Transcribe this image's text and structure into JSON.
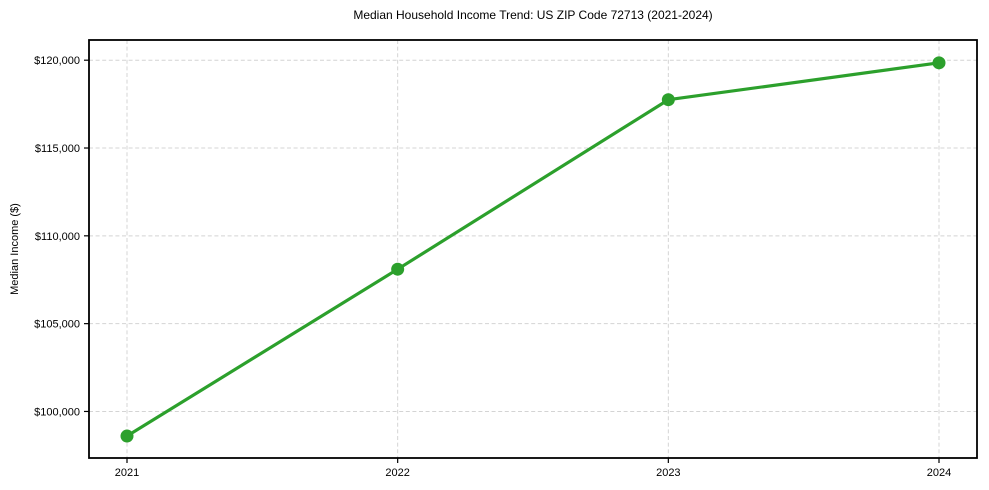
{
  "chart_data": {
    "type": "line",
    "title": "Median Household Income Trend: US ZIP Code 72713 (2021-2024)",
    "xlabel": "",
    "ylabel": "Median Income ($)",
    "categories": [
      "2021",
      "2022",
      "2023",
      "2024"
    ],
    "series": [
      {
        "name": "Median Household Income",
        "values": [
          98600,
          108100,
          117750,
          119850
        ]
      }
    ],
    "yticks": [
      100000,
      105000,
      110000,
      115000,
      120000
    ],
    "ytick_labels": [
      "$100,000",
      "$105,000",
      "$110,000",
      "$115,000",
      "$120,000"
    ],
    "ylim": [
      97350,
      121150
    ],
    "grid": true,
    "grid_style": "dashed",
    "legend": false,
    "colors": {
      "line": "#2ca02c",
      "marker": "#2ca02c",
      "grid": "#d4d4d4",
      "axis": "#000000",
      "text": "#000000",
      "background": "#ffffff"
    }
  }
}
